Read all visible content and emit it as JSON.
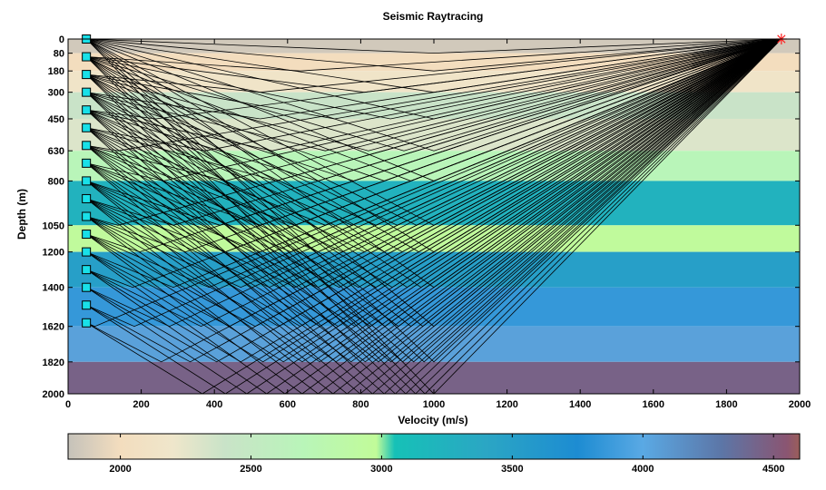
{
  "chart_data": {
    "type": "heatmap",
    "title": "Seismic Raytracing",
    "xlabel": "Velocity (m/s)",
    "ylabel": "Depth (m)",
    "xlim": [
      0,
      2000
    ],
    "ylim": [
      0,
      2000
    ],
    "y_reversed": true,
    "xticks": [
      0,
      200,
      400,
      600,
      800,
      1000,
      1200,
      1400,
      1600,
      1800,
      2000
    ],
    "yticks": [
      0,
      80,
      180,
      300,
      450,
      630,
      800,
      1050,
      1200,
      1400,
      1620,
      1820,
      2000
    ],
    "layers": [
      {
        "top": 0,
        "bottom": 80,
        "velocity": 1850
      },
      {
        "top": 80,
        "bottom": 180,
        "velocity": 2000
      },
      {
        "top": 180,
        "bottom": 300,
        "velocity": 2150
      },
      {
        "top": 300,
        "bottom": 450,
        "velocity": 2400
      },
      {
        "top": 450,
        "bottom": 630,
        "velocity": 2300
      },
      {
        "top": 630,
        "bottom": 800,
        "velocity": 2700
      },
      {
        "top": 800,
        "bottom": 1050,
        "velocity": 3250
      },
      {
        "top": 1050,
        "bottom": 1200,
        "velocity": 2950
      },
      {
        "top": 1200,
        "bottom": 1400,
        "velocity": 3500
      },
      {
        "top": 1400,
        "bottom": 1620,
        "velocity": 3850
      },
      {
        "top": 1620,
        "bottom": 1820,
        "velocity": 4050
      },
      {
        "top": 1820,
        "bottom": 2000,
        "velocity": 4450
      }
    ],
    "source": {
      "x": 1950,
      "depth": 0
    },
    "receivers": {
      "x": 50,
      "depths": [
        0,
        100,
        200,
        300,
        400,
        500,
        600,
        700,
        800,
        900,
        1000,
        1100,
        1200,
        1300,
        1400,
        1500,
        1600
      ]
    },
    "reflectors": [
      80,
      180,
      300,
      450,
      630,
      800,
      1050,
      1200,
      1400,
      1620,
      1820,
      2000
    ],
    "colorbar": {
      "ticks": [
        2000,
        2500,
        3000,
        3500,
        4000,
        4500
      ],
      "range": [
        1800,
        4600
      ],
      "colors": [
        "#c5c2ba",
        "#f3ddbe",
        "#efe6cb",
        "#c9e3c8",
        "#b9f5b9",
        "#c1fb99",
        "#16c1b7",
        "#2ba6c4",
        "#1d8cd2",
        "#5aa9e4",
        "#5c76a7",
        "#8a5572",
        "#9b5e5a"
      ],
      "color_stops": [
        1800,
        2000,
        2200,
        2400,
        2700,
        2980,
        3050,
        3400,
        3750,
        4000,
        4300,
        4550,
        4600
      ]
    },
    "colors": {
      "ray": "#000000",
      "receiver": "#19e0e8",
      "source": "#ff2020"
    }
  }
}
